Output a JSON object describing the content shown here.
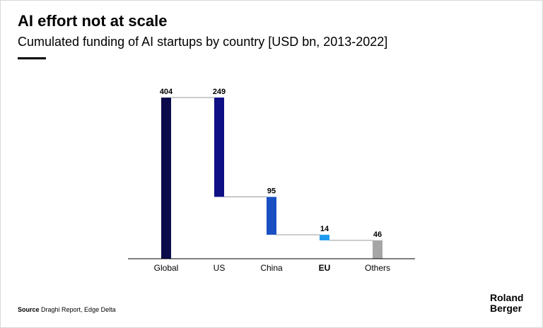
{
  "header": {
    "title": "AI effort not at scale",
    "subtitle": "Cumulated funding of AI startups by country [USD bn, 2013-2022]"
  },
  "footer": {
    "source_label": "Source",
    "source_text": "Draghi Report, Edge Delta",
    "logo_line1": "Roland",
    "logo_line2": "Berger"
  },
  "chart_data": {
    "type": "bar",
    "subtype": "waterfall",
    "categories": [
      "Global",
      "US",
      "China",
      "EU",
      "Others"
    ],
    "values": [
      404,
      249,
      95,
      14,
      46
    ],
    "labels": [
      "404",
      "249",
      "95",
      "14",
      "46"
    ],
    "bar_kinds": [
      "total",
      "decrement",
      "decrement",
      "decrement",
      "remainder"
    ],
    "colors": [
      "#0b0a4a",
      "#0f0f86",
      "#1a4fc3",
      "#1e9bf0",
      "#a6a6a6"
    ],
    "highlighted_category": "EU",
    "connector_color": "#9a9a9a",
    "axis_color": "#000000",
    "ylim": [
      0,
      404
    ],
    "grid": false,
    "title": "AI effort not at scale",
    "xlabel": "",
    "ylabel": ""
  }
}
